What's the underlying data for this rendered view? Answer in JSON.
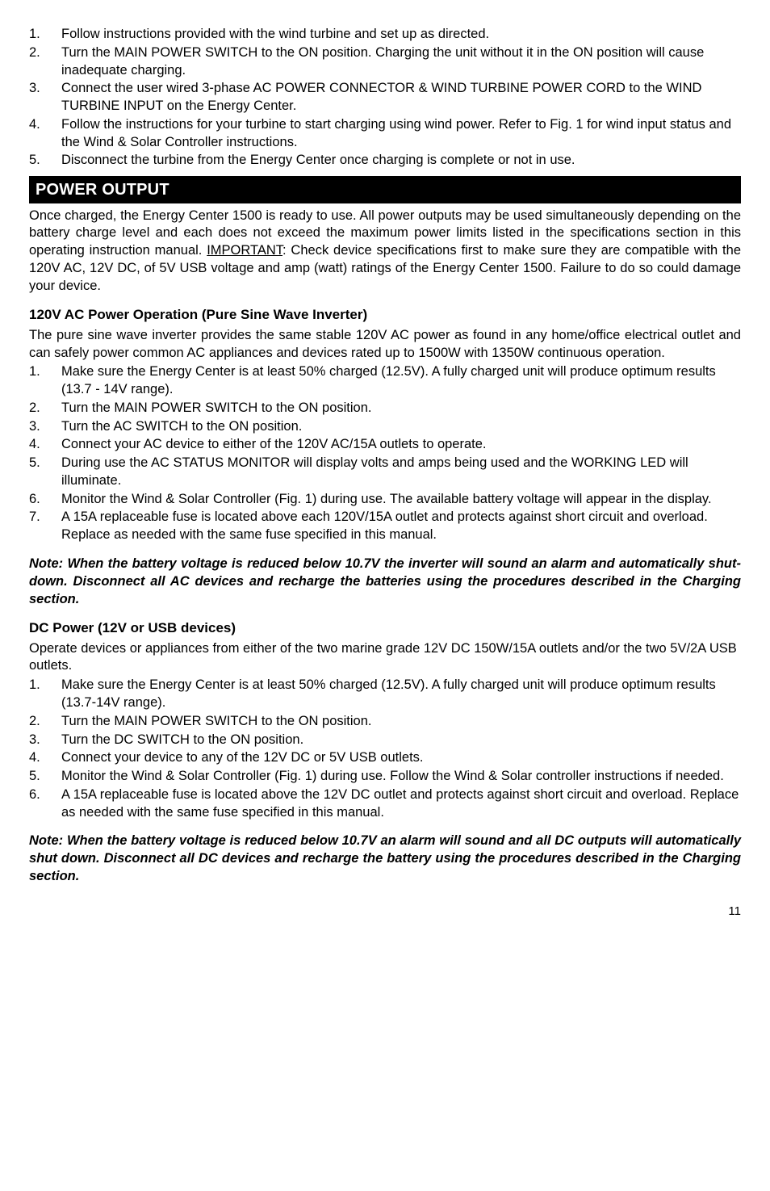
{
  "topList": [
    "Follow instructions provided with the wind turbine and set up as directed.",
    "Turn the MAIN POWER SWITCH to the ON position. Charging the unit without it in the ON position will cause inadequate charging.",
    "Connect the user wired 3-phase AC POWER CONNECTOR & WIND TURBINE POWER CORD to the WIND TURBINE INPUT on the Energy Center.",
    "Follow the instructions for your turbine to start charging using wind power. Refer to Fig. 1 for wind input status and the Wind & Solar Controller instructions.",
    "Disconnect the turbine from the Energy Center once charging is complete or not in use."
  ],
  "powerOutput": {
    "header": "POWER OUTPUT",
    "intro_pre": "Once charged, the Energy Center 1500 is ready to use.  All power outputs may be used simultaneously depending on the battery charge level and each does not exceed the maximum power limits listed in the specifications section in this operating instruction manual. ",
    "intro_important": "IMPORTANT",
    "intro_post": ":  Check device specifications first to make sure they are compatible with the 120V AC, 12V DC, of 5V USB voltage and amp (watt) ratings of the Energy Center 1500. Failure to do so could damage your device."
  },
  "acSection": {
    "heading": "120V AC Power Operation (Pure Sine Wave Inverter)",
    "intro": "The pure sine wave inverter provides the same stable 120V AC power as found in any home/office electrical outlet and can safely power common AC appliances and devices rated up to 1500W with 1350W continuous operation.",
    "list": [
      "Make sure the Energy Center is at least 50% charged (12.5V).  A fully charged unit will produce optimum results (13.7 - 14V range).",
      "Turn the MAIN POWER SWITCH to the ON position.",
      "Turn the AC SWITCH to the ON position.",
      "Connect your AC device to either of the 120V AC/15A outlets to operate.",
      "During use the AC STATUS MONITOR will display volts and amps being used and the WORKING LED will illuminate.",
      "Monitor the Wind & Solar Controller (Fig. 1) during use.  The available battery voltage will appear in the display.",
      "A 15A replaceable fuse is located above each 120V/15A outlet and protects against short circuit and overload. Replace as needed with the same fuse specified in this manual."
    ],
    "note": "Note: When the battery voltage is reduced below 10.7V the inverter will sound an alarm and automatically shut-down. Disconnect all AC devices and recharge the batteries using the procedures described in the Charging section."
  },
  "dcSection": {
    "heading": "DC Power (12V or USB devices)",
    "intro": "Operate devices or appliances from either of the two marine grade 12V DC 150W/15A outlets and/or the two 5V/2A USB outlets.",
    "list": [
      "Make sure the Energy Center is at least 50% charged (12.5V).  A fully charged unit will produce optimum results (13.7-14V range).",
      "Turn the MAIN POWER SWITCH to the ON position.",
      "Turn the DC SWITCH to the ON position.",
      "Connect your device to any of the 12V DC or 5V USB outlets.",
      "Monitor the Wind & Solar Controller (Fig. 1) during use.  Follow the Wind & Solar controller instructions if needed.",
      "A 15A replaceable fuse is located above the 12V DC outlet and protects against short circuit and overload. Replace as needed with the same fuse specified in this manual."
    ],
    "note": "Note: When the battery voltage is reduced below 10.7V an alarm will sound and all DC outputs will automatically shut down. Disconnect all DC devices and recharge the battery using the procedures described in the Charging section."
  },
  "pageNumber": "11"
}
